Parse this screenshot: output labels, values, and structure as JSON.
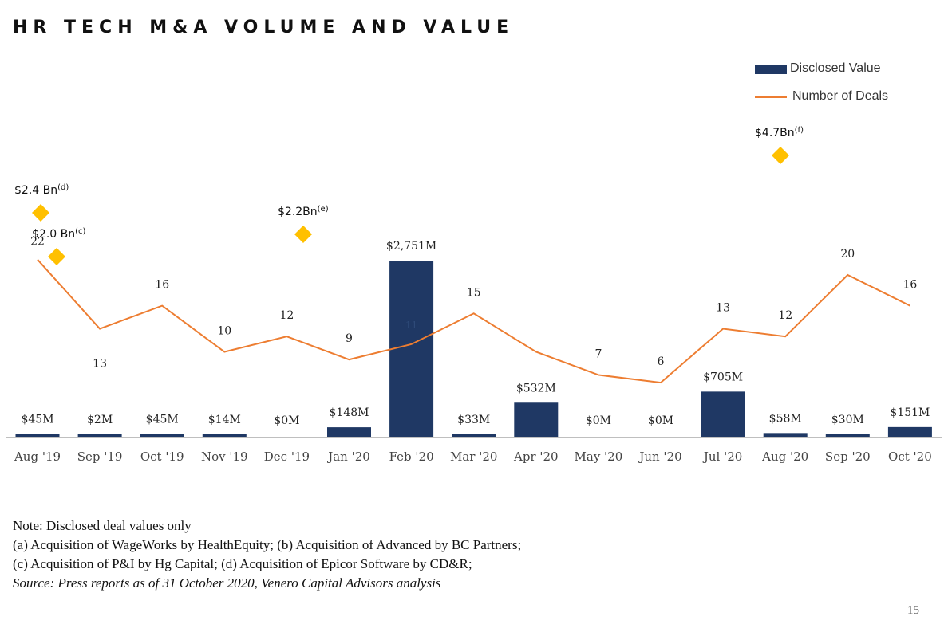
{
  "title": "HR TECH M&A VOLUME AND VALUE",
  "legend": [
    {
      "label": "Disclosed Value",
      "color": "#1f3864",
      "kind": "bar"
    },
    {
      "label": "Number of Deals",
      "color": "#ed7d31",
      "kind": "line"
    }
  ],
  "chart_data": {
    "type": "bar",
    "categories": [
      "Aug '19",
      "Sep '19",
      "Oct '19",
      "Nov '19",
      "Dec '19",
      "Jan '20",
      "Feb '20",
      "Mar '20",
      "Apr '20",
      "May '20",
      "Jun '20",
      "Jul '20",
      "Aug '20",
      "Sep '20",
      "Oct '20"
    ],
    "series": [
      {
        "name": "Disclosed Value",
        "type": "bar",
        "color": "#1f3864",
        "values": [
          45,
          2,
          45,
          14,
          0,
          148,
          2751,
          33,
          532,
          0,
          0,
          705,
          58,
          30,
          151
        ],
        "labels": [
          "$45M",
          "$2M",
          "$45M",
          "$14M",
          "$0M",
          "$148M",
          "$2,751M",
          "$33M",
          "$532M",
          "$0M",
          "$0M",
          "$705M",
          "$58M",
          "$30M",
          "$151M"
        ]
      },
      {
        "name": "Number of Deals",
        "type": "line",
        "color": "#ed7d31",
        "values": [
          22,
          13,
          16,
          10,
          12,
          9,
          11,
          15,
          10,
          7,
          6,
          13,
          12,
          20,
          16
        ],
        "labels": [
          "22",
          "13",
          "16",
          "10",
          "12",
          "9",
          "11",
          "15",
          "",
          "7",
          "6",
          "13",
          "12",
          "20",
          "16"
        ]
      }
    ],
    "annotations": [
      {
        "category": "Aug '19",
        "value_bn": 2.4,
        "label": "$2.4 Bn",
        "note": "(d)",
        "color": "#ffc000"
      },
      {
        "category": "Aug '19",
        "value_bn": 2.0,
        "label": "$2.0 Bn",
        "note": "(c)",
        "color": "#ffc000"
      },
      {
        "category": "Dec '19",
        "value_bn": 2.2,
        "label": "$2.2Bn",
        "note": "(e)",
        "color": "#ffc000"
      },
      {
        "category": "Aug '20",
        "value_bn": 4.7,
        "label": "$4.7Bn",
        "note": "(f)",
        "color": "#ffc000"
      }
    ],
    "xlabel": "",
    "ylabel": "",
    "grid": false,
    "legend_position": "top-right"
  },
  "notes": [
    "Note: Disclosed deal values only",
    "(a) Acquisition of WageWorks by HealthEquity; (b) Acquisition of Advanced by BC Partners;",
    "(c) Acquisition of P&I by Hg Capital; (d) Acquisition of Epicor Software by CD&R;"
  ],
  "source": "Source: Press reports as of 31 October 2020, Venero Capital Advisors analysis",
  "page_number": "15"
}
